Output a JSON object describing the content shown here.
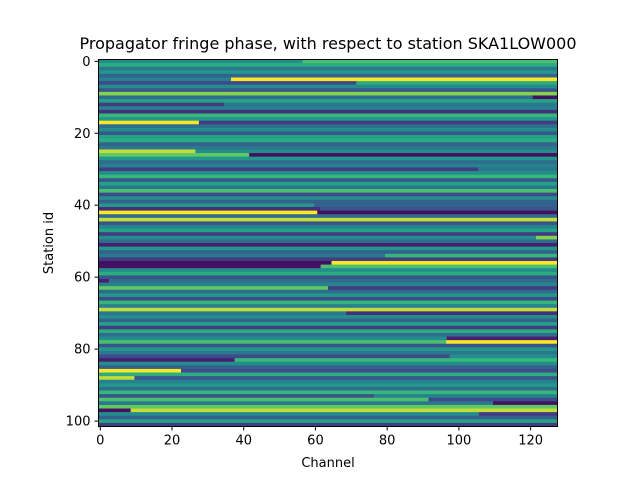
{
  "chart_data": {
    "type": "heatmap",
    "title": "Propagator fringe phase, with respect to station SKA1LOW000",
    "xlabel": "Channel",
    "ylabel": "Station id",
    "xlim": [
      0,
      127
    ],
    "ylim": [
      102,
      0
    ],
    "y_inverted": true,
    "colormap": "viridis",
    "grid": false,
    "legend": "none",
    "x_ticks": [
      "0",
      "20",
      "40",
      "60",
      "80",
      "100",
      "120"
    ],
    "y_ticks": [
      "0",
      "20",
      "40",
      "60",
      "80",
      "100"
    ],
    "num_channels": 128,
    "num_stations": 102,
    "value_range": [
      0,
      1
    ],
    "note_values": "normalized phase (0 = dark purple, 1 = yellow), per station as [start_value, break_channel, end_value]",
    "rows": [
      [
        0.55,
        57,
        0.8
      ],
      [
        0.7,
        -1,
        0.7
      ],
      [
        0.45,
        -1,
        0.45
      ],
      [
        0.6,
        -1,
        0.6
      ],
      [
        0.35,
        -1,
        0.35
      ],
      [
        0.5,
        37,
        1.0
      ],
      [
        0.25,
        72,
        0.7
      ],
      [
        0.55,
        -1,
        0.55
      ],
      [
        0.3,
        -1,
        0.3
      ],
      [
        0.9,
        -1,
        0.9
      ],
      [
        0.4,
        121,
        0.05
      ],
      [
        0.65,
        -1,
        0.65
      ],
      [
        0.2,
        35,
        0.45
      ],
      [
        0.5,
        -1,
        0.5
      ],
      [
        0.15,
        -1,
        0.15
      ],
      [
        0.75,
        -1,
        0.75
      ],
      [
        0.6,
        -1,
        0.6
      ],
      [
        1.0,
        28,
        0.2
      ],
      [
        0.4,
        -1,
        0.4
      ],
      [
        0.55,
        -1,
        0.55
      ],
      [
        0.3,
        -1,
        0.3
      ],
      [
        0.65,
        -1,
        0.65
      ],
      [
        0.7,
        -1,
        0.7
      ],
      [
        0.35,
        -1,
        0.35
      ],
      [
        0.45,
        -1,
        0.45
      ],
      [
        0.95,
        27,
        0.55
      ],
      [
        0.85,
        42,
        0.05
      ],
      [
        0.6,
        -1,
        0.6
      ],
      [
        0.4,
        -1,
        0.4
      ],
      [
        0.5,
        -1,
        0.5
      ],
      [
        0.2,
        106,
        0.45
      ],
      [
        0.55,
        -1,
        0.55
      ],
      [
        0.75,
        -1,
        0.75
      ],
      [
        0.3,
        -1,
        0.3
      ],
      [
        0.65,
        -1,
        0.65
      ],
      [
        0.45,
        -1,
        0.45
      ],
      [
        0.8,
        -1,
        0.8
      ],
      [
        0.25,
        -1,
        0.25
      ],
      [
        0.55,
        -1,
        0.55
      ],
      [
        0.35,
        -1,
        0.35
      ],
      [
        0.6,
        60,
        0.35
      ],
      [
        0.15,
        62,
        0.3
      ],
      [
        1.0,
        61,
        0.05
      ],
      [
        0.4,
        -1,
        0.4
      ],
      [
        0.95,
        -1,
        0.95
      ],
      [
        0.3,
        -1,
        0.3
      ],
      [
        0.5,
        -1,
        0.5
      ],
      [
        0.65,
        -1,
        0.65
      ],
      [
        0.2,
        -1,
        0.2
      ],
      [
        0.55,
        122,
        0.9
      ],
      [
        0.4,
        -1,
        0.4
      ],
      [
        0.1,
        -1,
        0.1
      ],
      [
        0.6,
        -1,
        0.6
      ],
      [
        0.35,
        -1,
        0.35
      ],
      [
        0.45,
        80,
        0.75
      ],
      [
        0.2,
        -1,
        0.2
      ],
      [
        0.05,
        65,
        1.0
      ],
      [
        0.05,
        62,
        0.8
      ],
      [
        0.55,
        -1,
        0.55
      ],
      [
        0.7,
        -1,
        0.7
      ],
      [
        0.3,
        -1,
        0.3
      ],
      [
        0.1,
        3,
        0.4
      ],
      [
        0.5,
        -1,
        0.5
      ],
      [
        0.85,
        64,
        0.2
      ],
      [
        0.4,
        -1,
        0.4
      ],
      [
        0.6,
        -1,
        0.6
      ],
      [
        0.25,
        -1,
        0.25
      ],
      [
        0.75,
        -1,
        0.75
      ],
      [
        0.5,
        -1,
        0.5
      ],
      [
        0.95,
        -1,
        1.0
      ],
      [
        0.45,
        69,
        0.15
      ],
      [
        0.55,
        -1,
        0.55
      ],
      [
        0.35,
        -1,
        0.35
      ],
      [
        0.65,
        -1,
        0.65
      ],
      [
        0.2,
        -1,
        0.2
      ],
      [
        0.7,
        -1,
        0.7
      ],
      [
        0.4,
        -1,
        0.4
      ],
      [
        0.55,
        97,
        0.1
      ],
      [
        0.8,
        97,
        1.0
      ],
      [
        0.3,
        -1,
        0.3
      ],
      [
        0.6,
        -1,
        0.6
      ],
      [
        0.45,
        -1,
        0.45
      ],
      [
        0.25,
        98,
        0.55
      ],
      [
        0.1,
        38,
        0.75
      ],
      [
        0.55,
        -1,
        0.55
      ],
      [
        0.35,
        -1,
        0.35
      ],
      [
        1.0,
        23,
        0.25
      ],
      [
        0.7,
        -1,
        0.7
      ],
      [
        0.95,
        10,
        0.3
      ],
      [
        0.5,
        -1,
        0.5
      ],
      [
        0.6,
        -1,
        0.6
      ],
      [
        0.4,
        -1,
        0.4
      ],
      [
        0.75,
        -1,
        0.75
      ],
      [
        0.3,
        77,
        0.5
      ],
      [
        0.8,
        92,
        0.25
      ],
      [
        0.45,
        110,
        0.05
      ],
      [
        0.85,
        -1,
        0.85
      ],
      [
        0.05,
        9,
        0.95
      ],
      [
        0.55,
        106,
        0.2
      ],
      [
        0.35,
        -1,
        0.35
      ],
      [
        0.65,
        -1,
        0.65
      ],
      [
        0.2,
        -1,
        0.2
      ]
    ]
  }
}
